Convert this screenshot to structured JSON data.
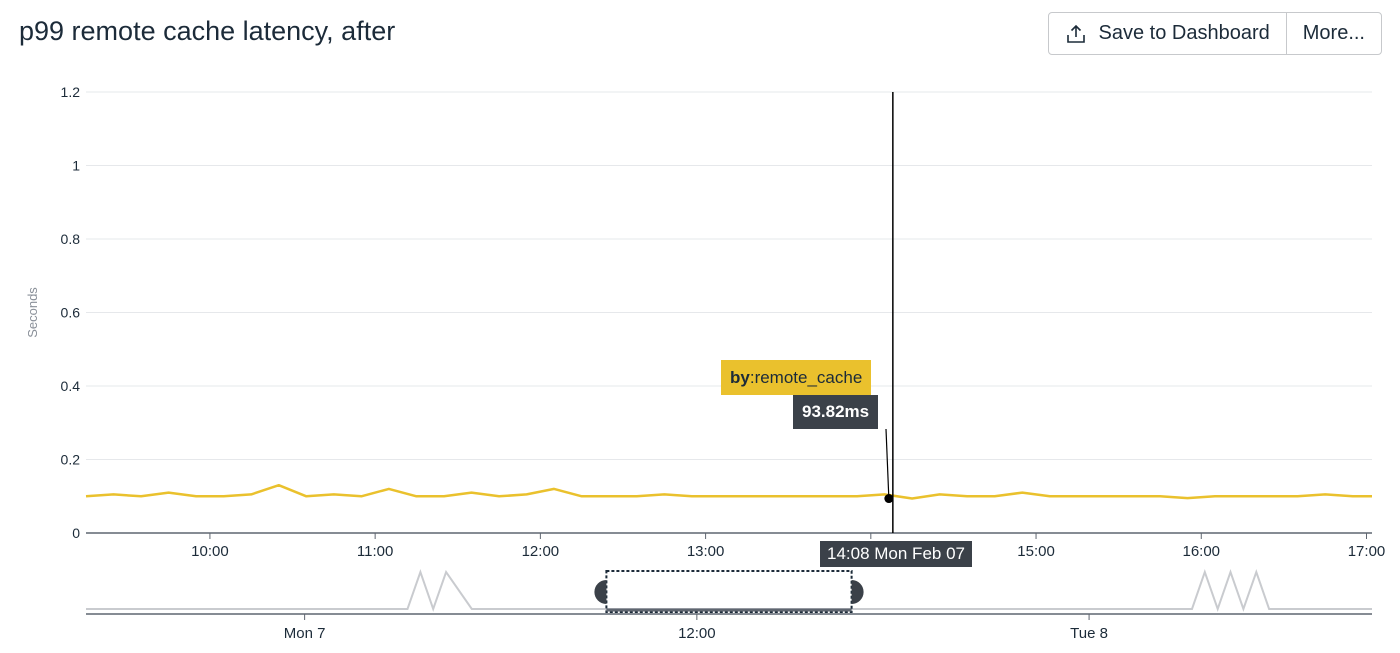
{
  "header": {
    "title": "p99 remote cache latency, after",
    "save_label": "Save to Dashboard",
    "more_label": "More..."
  },
  "tooltip": {
    "series_prefix": "by",
    "series_name": ":remote_cache",
    "value": "93.82ms",
    "time": "14:08 Mon Feb 07"
  },
  "colors": {
    "series": "#eac12d",
    "grid": "#e6e8eb",
    "axis": "#5f6670",
    "navigator": "#c9cbcf"
  },
  "chart_data": [
    {
      "type": "line",
      "title": "p99 remote cache latency, after",
      "ylabel": "Seconds",
      "xlabel": "",
      "x_ticks": [
        "10:00",
        "11:00",
        "12:00",
        "13:00",
        "14:00",
        "15:00",
        "16:00",
        "17:00"
      ],
      "xlim": [
        "09:15",
        "17:02"
      ],
      "y_ticks": [
        "0",
        "0.2",
        "0.4",
        "0.6",
        "0.8",
        "1",
        "1.2"
      ],
      "ylim": [
        0,
        1.2
      ],
      "grid": true,
      "series": [
        {
          "name": "by:remote_cache",
          "x": [
            "09:15",
            "09:25",
            "09:35",
            "09:45",
            "09:55",
            "10:05",
            "10:15",
            "10:25",
            "10:35",
            "10:45",
            "10:55",
            "11:05",
            "11:15",
            "11:25",
            "11:35",
            "11:45",
            "11:55",
            "12:05",
            "12:15",
            "12:25",
            "12:35",
            "12:45",
            "12:55",
            "13:05",
            "13:15",
            "13:25",
            "13:35",
            "13:45",
            "13:55",
            "14:05",
            "14:15",
            "14:25",
            "14:35",
            "14:45",
            "14:55",
            "15:05",
            "15:15",
            "15:25",
            "15:35",
            "15:45",
            "15:55",
            "16:05",
            "16:15",
            "16:25",
            "16:35",
            "16:45",
            "16:55",
            "17:02"
          ],
          "values": [
            0.1,
            0.105,
            0.1,
            0.11,
            0.1,
            0.1,
            0.105,
            0.13,
            0.1,
            0.105,
            0.1,
            0.12,
            0.1,
            0.1,
            0.11,
            0.1,
            0.105,
            0.12,
            0.1,
            0.1,
            0.1,
            0.105,
            0.1,
            0.1,
            0.1,
            0.1,
            0.1,
            0.1,
            0.1,
            0.105,
            0.094,
            0.105,
            0.1,
            0.1,
            0.11,
            0.1,
            0.1,
            0.1,
            0.1,
            0.1,
            0.095,
            0.1,
            0.1,
            0.1,
            0.1,
            0.105,
            0.1,
            0.1
          ]
        }
      ],
      "cursor": {
        "x": "14:08",
        "y": 0.09382
      }
    },
    {
      "type": "line",
      "title": "",
      "x_ticks": [
        "Mon 7",
        "12:00",
        "Tue 8"
      ],
      "series": [
        {
          "name": "",
          "x": [
            0,
            10,
            20,
            25,
            26,
            27,
            28,
            30,
            40,
            50,
            60,
            70,
            86,
            87,
            88,
            89,
            90,
            91,
            92,
            100
          ],
          "values": [
            0.05,
            0.05,
            0.05,
            0.05,
            1.0,
            0.05,
            1.0,
            0.05,
            0.05,
            0.05,
            0.05,
            0.05,
            0.05,
            1.0,
            0.05,
            1.0,
            0.05,
            1.0,
            0.05,
            0.05
          ]
        }
      ],
      "selection": [
        40,
        60
      ]
    }
  ]
}
